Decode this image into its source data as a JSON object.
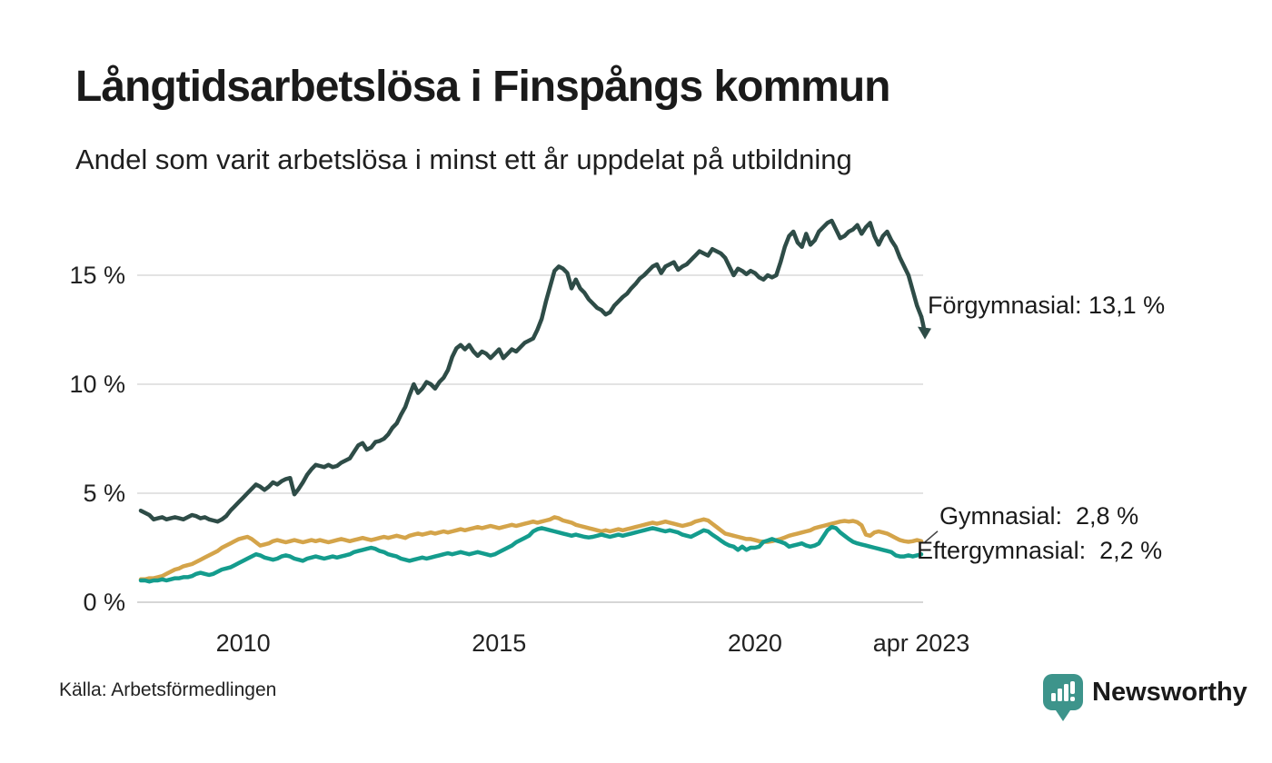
{
  "footer": {
    "source": "Källa: Arbetsförmedlingen",
    "brand": "Newsworthy",
    "brand_color": "#3D948B"
  },
  "chart_data": {
    "type": "line",
    "title": "Långtidsarbetslösa i Finspångs kommun",
    "subtitle": "Andel som varit arbetslösa i minst ett år uppdelat på utbildning",
    "unit": "%",
    "x_unit": "month",
    "x_range": [
      "jan 2008",
      "apr 2023"
    ],
    "ylim": [
      0,
      18
    ],
    "grid": "horizontal",
    "grid_color": "#e3e3e3",
    "zero_grid_color": "#d6d6d6",
    "x_ticks": [
      {
        "label": "2010",
        "value": 2010
      },
      {
        "label": "2015",
        "value": 2015
      },
      {
        "label": "2020",
        "value": 2020
      },
      {
        "label": "apr 2023",
        "value": 2023.25
      }
    ],
    "y_ticks": [
      {
        "label": "0 %",
        "value": 0
      },
      {
        "label": "5 %",
        "value": 5
      },
      {
        "label": "10 %",
        "value": 10
      },
      {
        "label": "15 %",
        "value": 15
      }
    ],
    "series": [
      {
        "name": "Förgymnasial",
        "color": "#2E4C47",
        "end_value": 13.1,
        "end_label": "Förgymnasial: 13,1 %",
        "end_marker": "arrow",
        "values": [
          4.2,
          4.1,
          4.0,
          3.8,
          3.85,
          3.9,
          3.8,
          3.85,
          3.9,
          3.85,
          3.8,
          3.9,
          4.0,
          3.95,
          3.85,
          3.9,
          3.8,
          3.75,
          3.7,
          3.8,
          3.95,
          4.2,
          4.4,
          4.6,
          4.8,
          5.0,
          5.2,
          5.4,
          5.3,
          5.15,
          5.3,
          5.5,
          5.4,
          5.55,
          5.65,
          5.7,
          4.95,
          5.2,
          5.5,
          5.85,
          6.1,
          6.3,
          6.25,
          6.2,
          6.3,
          6.2,
          6.25,
          6.4,
          6.5,
          6.6,
          6.9,
          7.2,
          7.3,
          7.0,
          7.1,
          7.35,
          7.4,
          7.5,
          7.7,
          8.0,
          8.2,
          8.6,
          8.95,
          9.5,
          10.0,
          9.6,
          9.8,
          10.1,
          10.0,
          9.8,
          10.1,
          10.3,
          10.65,
          11.25,
          11.65,
          11.8,
          11.6,
          11.8,
          11.5,
          11.3,
          11.5,
          11.4,
          11.2,
          11.4,
          11.6,
          11.2,
          11.4,
          11.6,
          11.5,
          11.7,
          11.9,
          12.0,
          12.1,
          12.5,
          13.0,
          13.8,
          14.5,
          15.2,
          15.4,
          15.3,
          15.1,
          14.4,
          14.8,
          14.4,
          14.2,
          13.9,
          13.7,
          13.5,
          13.4,
          13.2,
          13.3,
          13.6,
          13.8,
          14.0,
          14.15,
          14.4,
          14.6,
          14.85,
          15.0,
          15.2,
          15.4,
          15.5,
          15.1,
          15.4,
          15.5,
          15.6,
          15.25,
          15.4,
          15.5,
          15.7,
          15.9,
          16.1,
          16.0,
          15.9,
          16.2,
          16.1,
          16.0,
          15.8,
          15.4,
          15.0,
          15.3,
          15.2,
          15.05,
          15.2,
          15.1,
          14.9,
          14.8,
          15.0,
          14.9,
          15.0,
          15.6,
          16.3,
          16.8,
          17.0,
          16.5,
          16.3,
          16.9,
          16.4,
          16.6,
          17.0,
          17.2,
          17.4,
          17.5,
          17.1,
          16.7,
          16.8,
          17.0,
          17.1,
          17.3,
          16.9,
          17.2,
          17.4,
          16.8,
          16.4,
          16.8,
          17.0,
          16.6,
          16.3,
          15.8,
          15.4,
          15.0,
          14.3,
          13.6,
          13.1
        ]
      },
      {
        "name": "Gymnasial",
        "color": "#D4A44A",
        "end_value": 2.8,
        "end_label": "Gymnasial:  2,8 %",
        "end_marker": "connector",
        "values": [
          1.05,
          1.05,
          1.1,
          1.1,
          1.15,
          1.2,
          1.3,
          1.4,
          1.5,
          1.55,
          1.65,
          1.7,
          1.75,
          1.85,
          1.95,
          2.05,
          2.15,
          2.25,
          2.35,
          2.5,
          2.6,
          2.7,
          2.8,
          2.9,
          2.95,
          3.0,
          2.9,
          2.75,
          2.6,
          2.65,
          2.7,
          2.8,
          2.85,
          2.8,
          2.75,
          2.8,
          2.85,
          2.8,
          2.75,
          2.8,
          2.85,
          2.8,
          2.85,
          2.8,
          2.75,
          2.8,
          2.85,
          2.9,
          2.85,
          2.8,
          2.85,
          2.9,
          2.95,
          2.9,
          2.85,
          2.9,
          2.95,
          3.0,
          2.95,
          3.0,
          3.05,
          3.0,
          2.95,
          3.05,
          3.1,
          3.15,
          3.1,
          3.15,
          3.2,
          3.15,
          3.2,
          3.25,
          3.2,
          3.25,
          3.3,
          3.35,
          3.3,
          3.35,
          3.4,
          3.45,
          3.4,
          3.45,
          3.5,
          3.45,
          3.4,
          3.45,
          3.5,
          3.55,
          3.5,
          3.55,
          3.6,
          3.65,
          3.7,
          3.65,
          3.7,
          3.75,
          3.8,
          3.9,
          3.85,
          3.75,
          3.7,
          3.65,
          3.55,
          3.5,
          3.45,
          3.4,
          3.35,
          3.3,
          3.25,
          3.3,
          3.25,
          3.3,
          3.35,
          3.3,
          3.35,
          3.4,
          3.45,
          3.5,
          3.55,
          3.6,
          3.65,
          3.6,
          3.65,
          3.7,
          3.65,
          3.6,
          3.55,
          3.5,
          3.55,
          3.6,
          3.7,
          3.75,
          3.8,
          3.75,
          3.6,
          3.45,
          3.3,
          3.15,
          3.1,
          3.05,
          3.0,
          2.95,
          2.9,
          2.9,
          2.85,
          2.8,
          2.77,
          2.77,
          2.8,
          2.85,
          2.9,
          2.97,
          3.05,
          3.1,
          3.15,
          3.2,
          3.25,
          3.3,
          3.4,
          3.45,
          3.5,
          3.55,
          3.6,
          3.65,
          3.7,
          3.73,
          3.7,
          3.73,
          3.67,
          3.53,
          3.1,
          3.05,
          3.2,
          3.25,
          3.2,
          3.15,
          3.05,
          2.95,
          2.85,
          2.8,
          2.77,
          2.8,
          2.85,
          2.8
        ]
      },
      {
        "name": "Eftergymnasial",
        "color": "#149C8D",
        "end_value": 2.2,
        "end_label": "Eftergymnasial:  2,2 %",
        "end_marker": "none",
        "values": [
          1.0,
          1.0,
          0.95,
          1.0,
          1.0,
          1.05,
          1.0,
          1.05,
          1.1,
          1.1,
          1.15,
          1.15,
          1.2,
          1.3,
          1.35,
          1.3,
          1.25,
          1.3,
          1.4,
          1.5,
          1.55,
          1.6,
          1.7,
          1.8,
          1.9,
          2.0,
          2.1,
          2.2,
          2.15,
          2.05,
          2.0,
          1.95,
          2.0,
          2.1,
          2.15,
          2.1,
          2.0,
          1.95,
          1.9,
          2.0,
          2.05,
          2.1,
          2.05,
          2.0,
          2.05,
          2.1,
          2.05,
          2.1,
          2.15,
          2.2,
          2.3,
          2.35,
          2.4,
          2.45,
          2.5,
          2.45,
          2.35,
          2.3,
          2.2,
          2.15,
          2.1,
          2.0,
          1.95,
          1.9,
          1.95,
          2.0,
          2.05,
          2.0,
          2.05,
          2.1,
          2.15,
          2.2,
          2.25,
          2.2,
          2.25,
          2.3,
          2.25,
          2.2,
          2.25,
          2.3,
          2.25,
          2.2,
          2.15,
          2.2,
          2.3,
          2.4,
          2.5,
          2.6,
          2.75,
          2.85,
          2.95,
          3.05,
          3.25,
          3.35,
          3.4,
          3.35,
          3.3,
          3.25,
          3.2,
          3.15,
          3.1,
          3.05,
          3.1,
          3.05,
          3.0,
          2.97,
          3.0,
          3.05,
          3.1,
          3.05,
          3.0,
          3.05,
          3.1,
          3.05,
          3.1,
          3.15,
          3.2,
          3.25,
          3.3,
          3.35,
          3.4,
          3.35,
          3.3,
          3.25,
          3.3,
          3.25,
          3.2,
          3.1,
          3.05,
          3.0,
          3.1,
          3.2,
          3.3,
          3.25,
          3.1,
          2.97,
          2.83,
          2.7,
          2.6,
          2.55,
          2.4,
          2.55,
          2.4,
          2.5,
          2.5,
          2.55,
          2.77,
          2.83,
          2.9,
          2.83,
          2.77,
          2.7,
          2.55,
          2.6,
          2.65,
          2.7,
          2.6,
          2.55,
          2.6,
          2.7,
          3.0,
          3.3,
          3.45,
          3.4,
          3.2,
          3.05,
          2.9,
          2.77,
          2.7,
          2.65,
          2.6,
          2.55,
          2.5,
          2.45,
          2.4,
          2.35,
          2.3,
          2.15,
          2.1,
          2.1,
          2.15,
          2.1,
          2.15,
          2.2
        ]
      }
    ]
  }
}
